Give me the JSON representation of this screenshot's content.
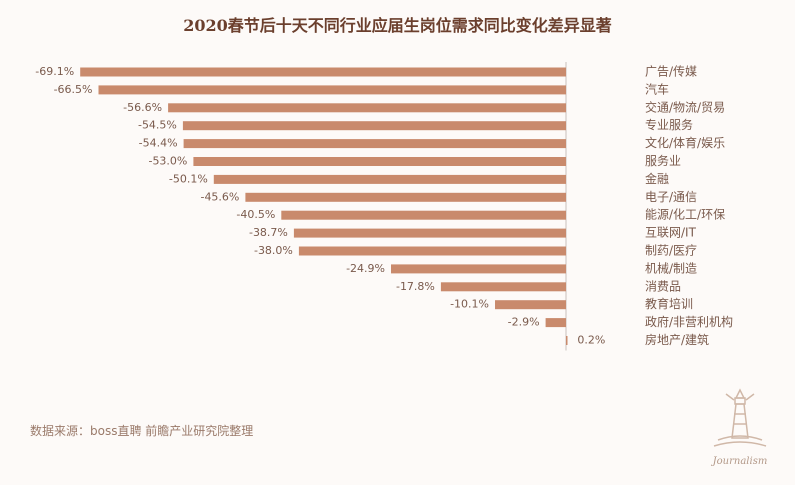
{
  "title": "2020春节后十天不同行业应届生岗位需求同比变化差异显著",
  "source": "数据来源：boss直聘 前瞻产业研究院整理",
  "logo": {
    "text": "Journalism",
    "icon": "lighthouse-icon"
  },
  "colors": {
    "bar": "#c98a6c",
    "label": "#7a5a4c",
    "axis": "#c9c0bb"
  },
  "chart_data": {
    "type": "bar",
    "orientation": "horizontal",
    "categories": [
      "广告/传媒",
      "汽车",
      "交通/物流/贸易",
      "专业服务",
      "文化/体育/娱乐",
      "服务业",
      "金融",
      "电子/通信",
      "能源/化工/环保",
      "互联网/IT",
      "制药/医疗",
      "机械/制造",
      "消费品",
      "教育培训",
      "政府/非营利机构",
      "房地产/建筑"
    ],
    "values": [
      -69.1,
      -66.5,
      -56.6,
      -54.5,
      -54.4,
      -53.0,
      -50.1,
      -45.6,
      -40.5,
      -38.7,
      -38.0,
      -24.9,
      -17.8,
      -10.1,
      -2.9,
      0.2
    ],
    "value_labels": [
      "-69.1%",
      "-66.5%",
      "-56.6%",
      "-54.5%",
      "-54.4%",
      "-53.0%",
      "-50.1%",
      "-45.6%",
      "-40.5%",
      "-38.7%",
      "-38.0%",
      "-24.9%",
      "-17.8%",
      "-10.1%",
      "-2.9%",
      "0.2%"
    ],
    "unit": "%",
    "xlim": [
      -72,
      2
    ],
    "grid": false,
    "legend": "none"
  }
}
